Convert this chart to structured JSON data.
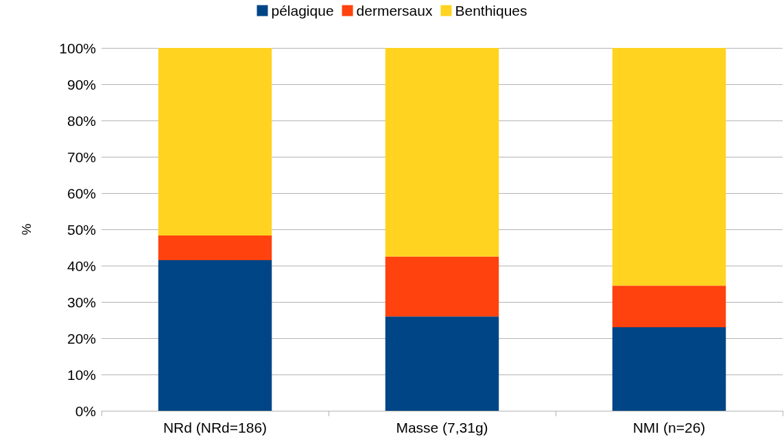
{
  "chart_data": {
    "type": "bar",
    "stacked": true,
    "ylabel": "%",
    "categories": [
      "NRd (NRd=186)",
      "Masse (7,31g)",
      "NMI (n=26)"
    ],
    "series": [
      {
        "name": "pélagique",
        "color": "#004586",
        "values": [
          41.5,
          26.0,
          23.0
        ]
      },
      {
        "name": "dermersaux",
        "color": "#ff420e",
        "values": [
          6.8,
          16.5,
          11.5
        ]
      },
      {
        "name": "Benthiques",
        "color": "#ffd320",
        "values": [
          51.7,
          57.5,
          65.5
        ]
      }
    ],
    "ylim": [
      0,
      100
    ],
    "yticks": [
      {
        "value": 0,
        "label": "0%"
      },
      {
        "value": 10,
        "label": "10%"
      },
      {
        "value": 20,
        "label": "20%"
      },
      {
        "value": 30,
        "label": "30%"
      },
      {
        "value": 40,
        "label": "40%"
      },
      {
        "value": 50,
        "label": "50%"
      },
      {
        "value": 60,
        "label": "60%"
      },
      {
        "value": 70,
        "label": "70%"
      },
      {
        "value": 80,
        "label": "80%"
      },
      {
        "value": 90,
        "label": "90%"
      },
      {
        "value": 100,
        "label": "100%"
      }
    ],
    "grid": "y",
    "legend": "top"
  }
}
